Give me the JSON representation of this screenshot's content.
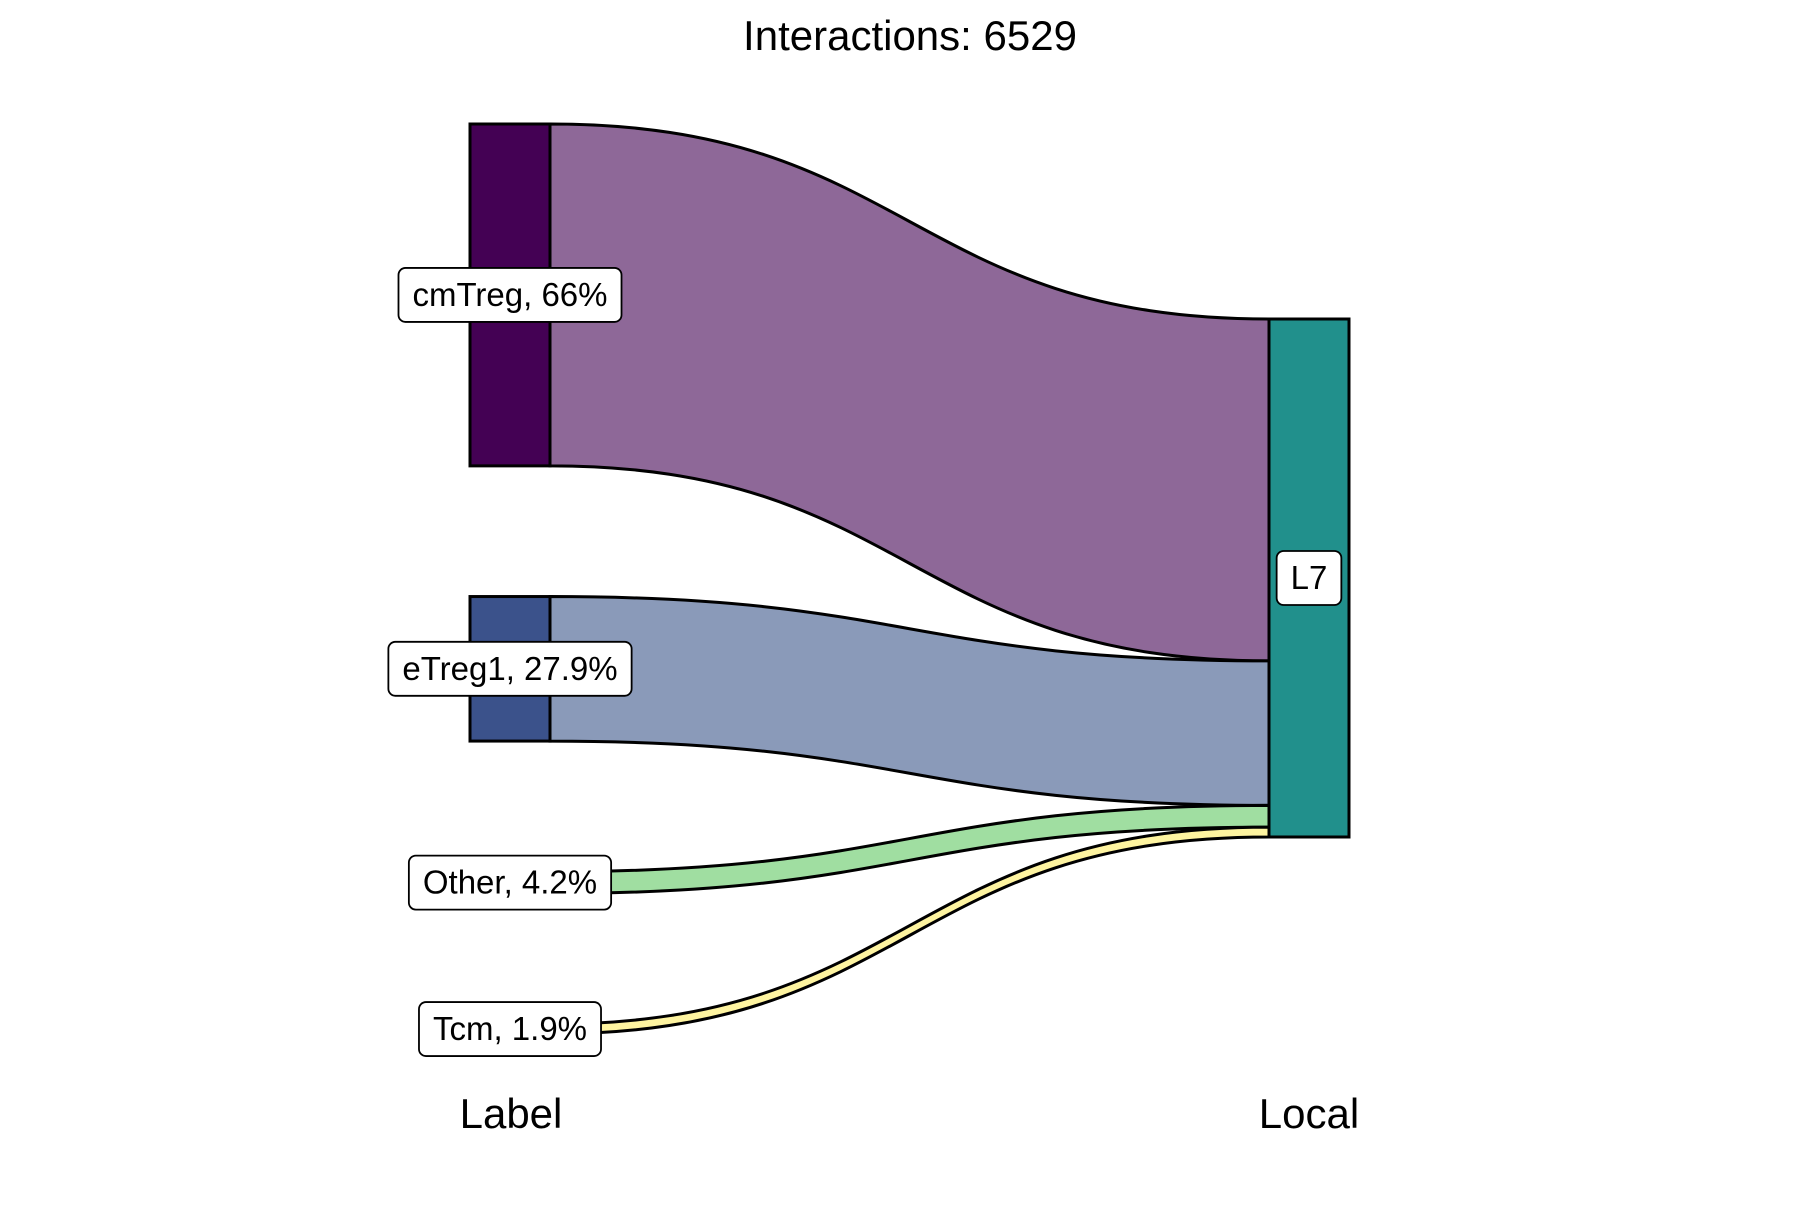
{
  "chart_data": {
    "type": "sankey",
    "title": "Interactions: 6529",
    "axes": [
      "Label",
      "Local"
    ],
    "flows": [
      {
        "from": "cmTreg",
        "to": "L7",
        "percent": 66,
        "label": "cmTreg, 66%",
        "node_color": "#440154",
        "flow_color": "#8e6898"
      },
      {
        "from": "eTreg1",
        "to": "L7",
        "percent": 27.9,
        "label": "eTreg1, 27.9%",
        "node_color": "#3b528b",
        "flow_color": "#8a9ab9"
      },
      {
        "from": "Other",
        "to": "L7",
        "percent": 4.2,
        "label": "Other, 4.2%",
        "node_color": "#5ec962",
        "flow_color": "#a0dea1"
      },
      {
        "from": "Tcm",
        "to": "L7",
        "percent": 1.9,
        "label": "Tcm, 1.9%",
        "node_color": "#fde725",
        "flow_color": "#fef4a0"
      }
    ],
    "target": {
      "name": "L7",
      "label": "L7",
      "color": "#21908c"
    }
  }
}
